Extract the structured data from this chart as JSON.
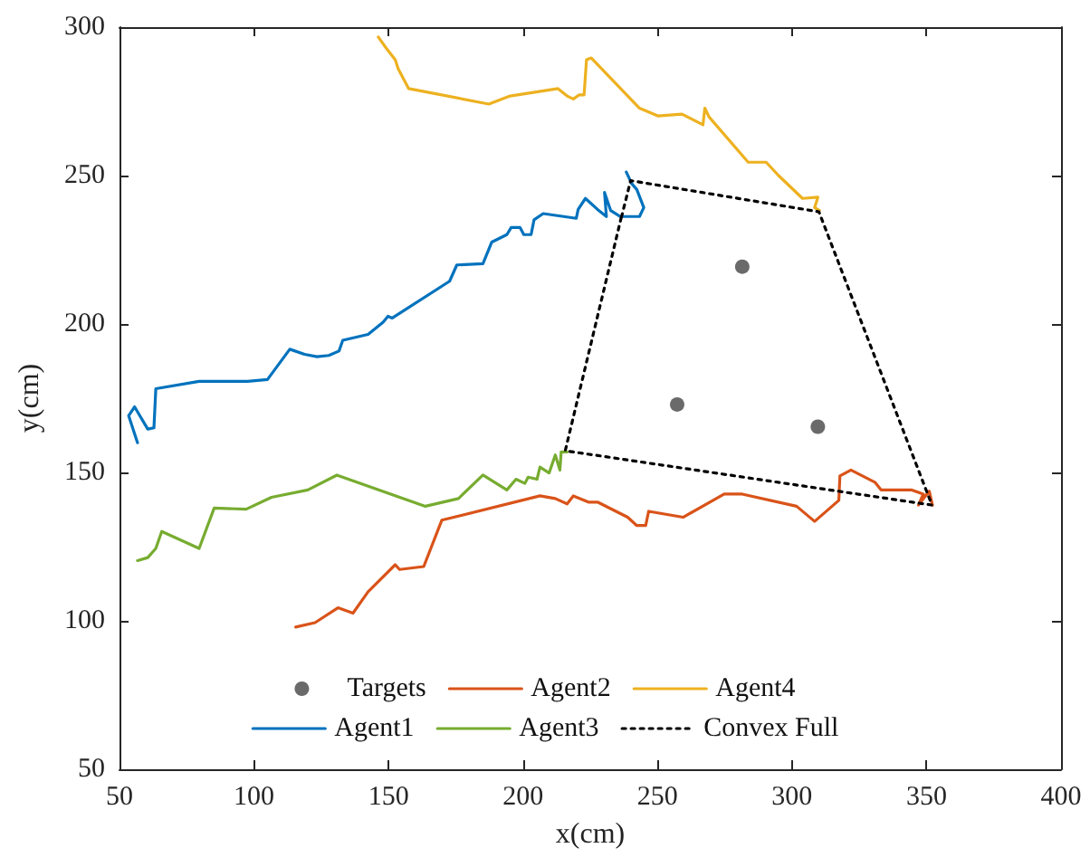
{
  "chart_data": {
    "type": "line",
    "xlabel": "x(cm)",
    "ylabel": "y(cm)",
    "xlim": [
      50,
      400
    ],
    "xticks": [
      50,
      100,
      150,
      200,
      250,
      300,
      350,
      400
    ],
    "ylim": [
      50,
      300
    ],
    "yticks": [
      50,
      100,
      150,
      200,
      250,
      300
    ],
    "grid": false,
    "legend": "bottom",
    "series": [
      {
        "name": "Targets",
        "type": "scatter",
        "marker": "circle",
        "color": "#454545",
        "x": [
          281.5,
          257.3,
          309.6
        ],
        "values": [
          219.3,
          172.9,
          165.4
        ]
      },
      {
        "name": "Agent1",
        "marker": "none",
        "line_style": "solid",
        "color": "#0072bd",
        "x": [
          56.7,
          53.4,
          55.6,
          60.5,
          62.8,
          63.5,
          79.6,
          97.6,
          105,
          113.3,
          118.8,
          123.4,
          127.8,
          131.6,
          133,
          142.4,
          148,
          149.8,
          151.4,
          172.7,
          175.4,
          185.1,
          188.4,
          194,
          195.6,
          198.9,
          200.3,
          203,
          204.1,
          207.5,
          219.8,
          220.5,
          223.2,
          227.7,
          231,
          230.3,
          232.6,
          236.2,
          243.3,
          244.9,
          242.3,
          240.4,
          238.4
        ],
        "values": [
          160,
          169.1,
          172.1,
          164.6,
          165,
          178.2,
          180.7,
          180.7,
          181.3,
          191.5,
          189.8,
          189,
          189.4,
          190.9,
          194.5,
          196.5,
          200.6,
          202.6,
          202,
          214.4,
          219.9,
          220.3,
          227.6,
          230.1,
          232.5,
          232.5,
          230.1,
          230.1,
          235.1,
          237.2,
          235.6,
          238.6,
          242.3,
          238.6,
          236.2,
          244.3,
          238.2,
          236.2,
          236.2,
          239.2,
          245.3,
          247.3,
          251.2
        ]
      },
      {
        "name": "Agent2",
        "marker": "none",
        "line_style": "solid",
        "color": "#d95319",
        "x": [
          115.5,
          122.7,
          131.2,
          136.8,
          142.4,
          152.5,
          154.1,
          163.1,
          169.8,
          206.3,
          212,
          216.4,
          218.7,
          224.3,
          227.7,
          238.9,
          242.3,
          245.6,
          246.7,
          259.5,
          274.8,
          281.5,
          301.7,
          308.4,
          317.4,
          317.8,
          321.9,
          330.8,
          333.1,
          344.3,
          348.8,
          347,
          351,
          352.2
        ],
        "values": [
          97.9,
          99.4,
          104.4,
          102.6,
          109.8,
          118.9,
          117.3,
          118.3,
          133.9,
          142.1,
          141.2,
          139.4,
          142.1,
          140,
          140,
          134.9,
          132.1,
          132.1,
          136.9,
          134.9,
          142.7,
          142.7,
          138.6,
          133.5,
          140.6,
          148.8,
          150.8,
          146.7,
          144.1,
          144.1,
          142.7,
          139,
          143.7,
          139
        ]
      },
      {
        "name": "Agent3",
        "marker": "none",
        "line_style": "solid",
        "color": "#77ac30",
        "x": [
          56.7,
          60.5,
          63.5,
          65.7,
          79.6,
          85.2,
          97.1,
          106.5,
          120,
          130.8,
          163.7,
          176,
          185.1,
          194,
          197.4,
          200.7,
          201.9,
          205.2,
          206.3,
          209.7,
          212,
          213.7,
          214.2,
          216.4
        ],
        "values": [
          120.3,
          121.3,
          124.4,
          130.1,
          124.4,
          138,
          137.6,
          141.6,
          144.1,
          149.1,
          138.6,
          141.2,
          149.1,
          144.1,
          147.7,
          146.3,
          148.4,
          147.7,
          151.8,
          149.8,
          155.9,
          150.8,
          156.9,
          156.9
        ]
      },
      {
        "name": "Agent4",
        "marker": "none",
        "line_style": "solid",
        "color": "#edb120",
        "x": [
          146.2,
          149.1,
          152.5,
          153.6,
          157.5,
          187.3,
          195.2,
          213,
          216.4,
          218.7,
          220.9,
          222.7,
          223.6,
          225.4,
          243.3,
          250.1,
          259.1,
          266.9,
          267.6,
          269.2,
          283.7,
          290.4,
          295,
          303.9,
          309.6,
          308.4,
          310.2
        ],
        "values": [
          296.7,
          293,
          289,
          286,
          279.3,
          274.1,
          276.8,
          279.3,
          276.8,
          275.8,
          277.2,
          277.2,
          289,
          289.6,
          272.7,
          270.1,
          270.7,
          267.1,
          272.7,
          269.7,
          254.5,
          254.5,
          250,
          242.3,
          242.7,
          239.2,
          238.2
        ]
      },
      {
        "name": "Convex Full",
        "marker": "none",
        "line_style": "dotted",
        "color": "#000000",
        "x": [
          236.6,
          240,
          310,
          352,
          215.7,
          236.5
        ],
        "values": [
          236,
          248.3,
          237.8,
          139,
          157.3,
          235.8
        ]
      }
    ]
  }
}
